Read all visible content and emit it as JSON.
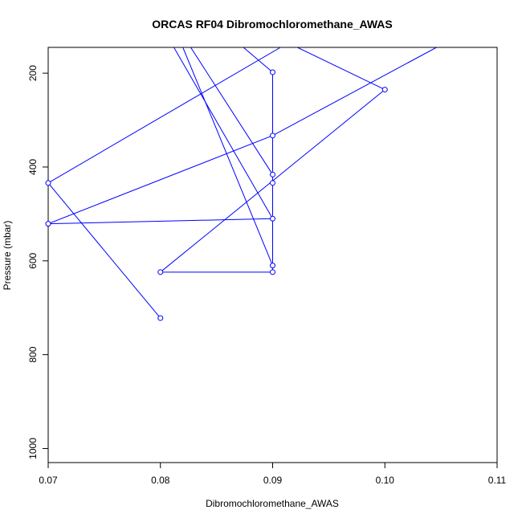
{
  "chart_data": {
    "type": "line",
    "title": "ORCAS RF04 Dibromochloromethane_AWAS",
    "xlabel": "Dibromochloromethane_AWAS",
    "ylabel": "Pressure (mbar)",
    "xlim": [
      0.07,
      0.11
    ],
    "ylim": [
      1030,
      145
    ],
    "y_reversed": true,
    "x_ticks": [
      0.07,
      0.08,
      0.09,
      0.1,
      0.11
    ],
    "x_tick_labels": [
      "0.07",
      "0.08",
      "0.09",
      "0.10",
      "0.11"
    ],
    "y_ticks": [
      200,
      400,
      600,
      800,
      1000
    ],
    "y_tick_labels": [
      "200",
      "400",
      "600",
      "800",
      "1000"
    ],
    "grid": false,
    "series_color": "#0000ff",
    "series": [
      {
        "x": [
          0.08,
          0.07,
          0.09,
          0.1,
          0.08,
          0.09,
          0.08,
          0.09,
          0.09,
          0.09,
          0.09,
          0.08,
          0.09,
          0.07,
          0.09,
          0.09,
          0.1,
          0.085
        ],
        "y": [
          722,
          434,
          60,
          235,
          624,
          624,
          60,
          610,
          65,
          200,
          416,
          60,
          510,
          521,
          333,
          200,
          60,
          60
        ]
      }
    ],
    "points": [
      {
        "x": 0.08,
        "y": 722
      },
      {
        "x": 0.07,
        "y": 434
      },
      {
        "x": 0.09,
        "y": 198
      },
      {
        "x": 0.1,
        "y": 235
      },
      {
        "x": 0.08,
        "y": 624
      },
      {
        "x": 0.09,
        "y": 624
      },
      {
        "x": 0.09,
        "y": 610
      },
      {
        "x": 0.09,
        "y": 416
      },
      {
        "x": 0.09,
        "y": 434
      },
      {
        "x": 0.09,
        "y": 510
      },
      {
        "x": 0.07,
        "y": 521
      },
      {
        "x": 0.09,
        "y": 333
      }
    ],
    "segments": [
      [
        {
          "x": 0.08,
          "y": 722
        },
        {
          "x": 0.07,
          "y": 434
        }
      ],
      [
        {
          "x": 0.07,
          "y": 434
        },
        {
          "x": 0.0907,
          "y": 145
        }
      ],
      [
        {
          "x": 0.09,
          "y": 198
        },
        {
          "x": 0.09,
          "y": 624
        }
      ],
      [
        {
          "x": 0.09,
          "y": 198
        },
        {
          "x": 0.0874,
          "y": 145
        }
      ],
      [
        {
          "x": 0.1,
          "y": 235
        },
        {
          "x": 0.0922,
          "y": 145
        }
      ],
      [
        {
          "x": 0.1,
          "y": 235
        },
        {
          "x": 0.08,
          "y": 624
        }
      ],
      [
        {
          "x": 0.08,
          "y": 624
        },
        {
          "x": 0.09,
          "y": 624
        }
      ],
      [
        {
          "x": 0.09,
          "y": 610
        },
        {
          "x": 0.082,
          "y": 145
        }
      ],
      [
        {
          "x": 0.09,
          "y": 416
        },
        {
          "x": 0.0827,
          "y": 145
        }
      ],
      [
        {
          "x": 0.09,
          "y": 510
        },
        {
          "x": 0.0812,
          "y": 145
        }
      ],
      [
        {
          "x": 0.09,
          "y": 510
        },
        {
          "x": 0.07,
          "y": 521
        }
      ],
      [
        {
          "x": 0.07,
          "y": 521
        },
        {
          "x": 0.09,
          "y": 333
        }
      ],
      [
        {
          "x": 0.09,
          "y": 333
        },
        {
          "x": 0.1046,
          "y": 145
        }
      ]
    ]
  }
}
